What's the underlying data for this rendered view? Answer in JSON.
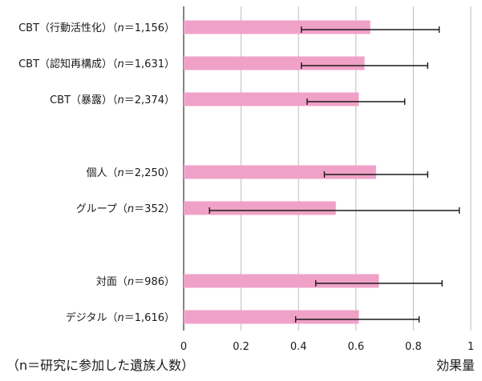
{
  "chart_data": {
    "type": "bar",
    "orientation": "horizontal",
    "categories": [
      {
        "name": "CBT",
        "detail": "行動活性化",
        "n": "1,156"
      },
      {
        "name": "CBT",
        "detail": "認知再構成",
        "n": "1,631"
      },
      {
        "name": "CBT",
        "detail": "暴露",
        "n": "2,374"
      },
      {
        "name": "個人",
        "detail": "",
        "n": "2,250"
      },
      {
        "name": "グループ",
        "detail": "",
        "n": "352"
      },
      {
        "name": "対面",
        "detail": "",
        "n": "986"
      },
      {
        "name": "デジタル",
        "detail": "",
        "n": "1,616"
      }
    ],
    "groups": [
      [
        0,
        1,
        2
      ],
      [
        3,
        4
      ],
      [
        5,
        6
      ]
    ],
    "values": [
      0.65,
      0.63,
      0.61,
      0.67,
      0.53,
      0.68,
      0.61
    ],
    "err_low": [
      0.41,
      0.41,
      0.43,
      0.49,
      0.09,
      0.46,
      0.39
    ],
    "err_high": [
      0.89,
      0.85,
      0.77,
      0.85,
      0.96,
      0.9,
      0.82
    ],
    "xlim": [
      0,
      1
    ],
    "xticks": [
      0,
      0.2,
      0.4,
      0.6,
      0.8,
      1
    ],
    "xtick_labels": [
      "0",
      "0.2",
      "0.4",
      "0.6",
      "0.8",
      "1"
    ],
    "xlabel": "効果量",
    "footnote": "（n＝研究に参加した遺族人数）",
    "bar_color": "#f0a1c7",
    "grid": true
  }
}
